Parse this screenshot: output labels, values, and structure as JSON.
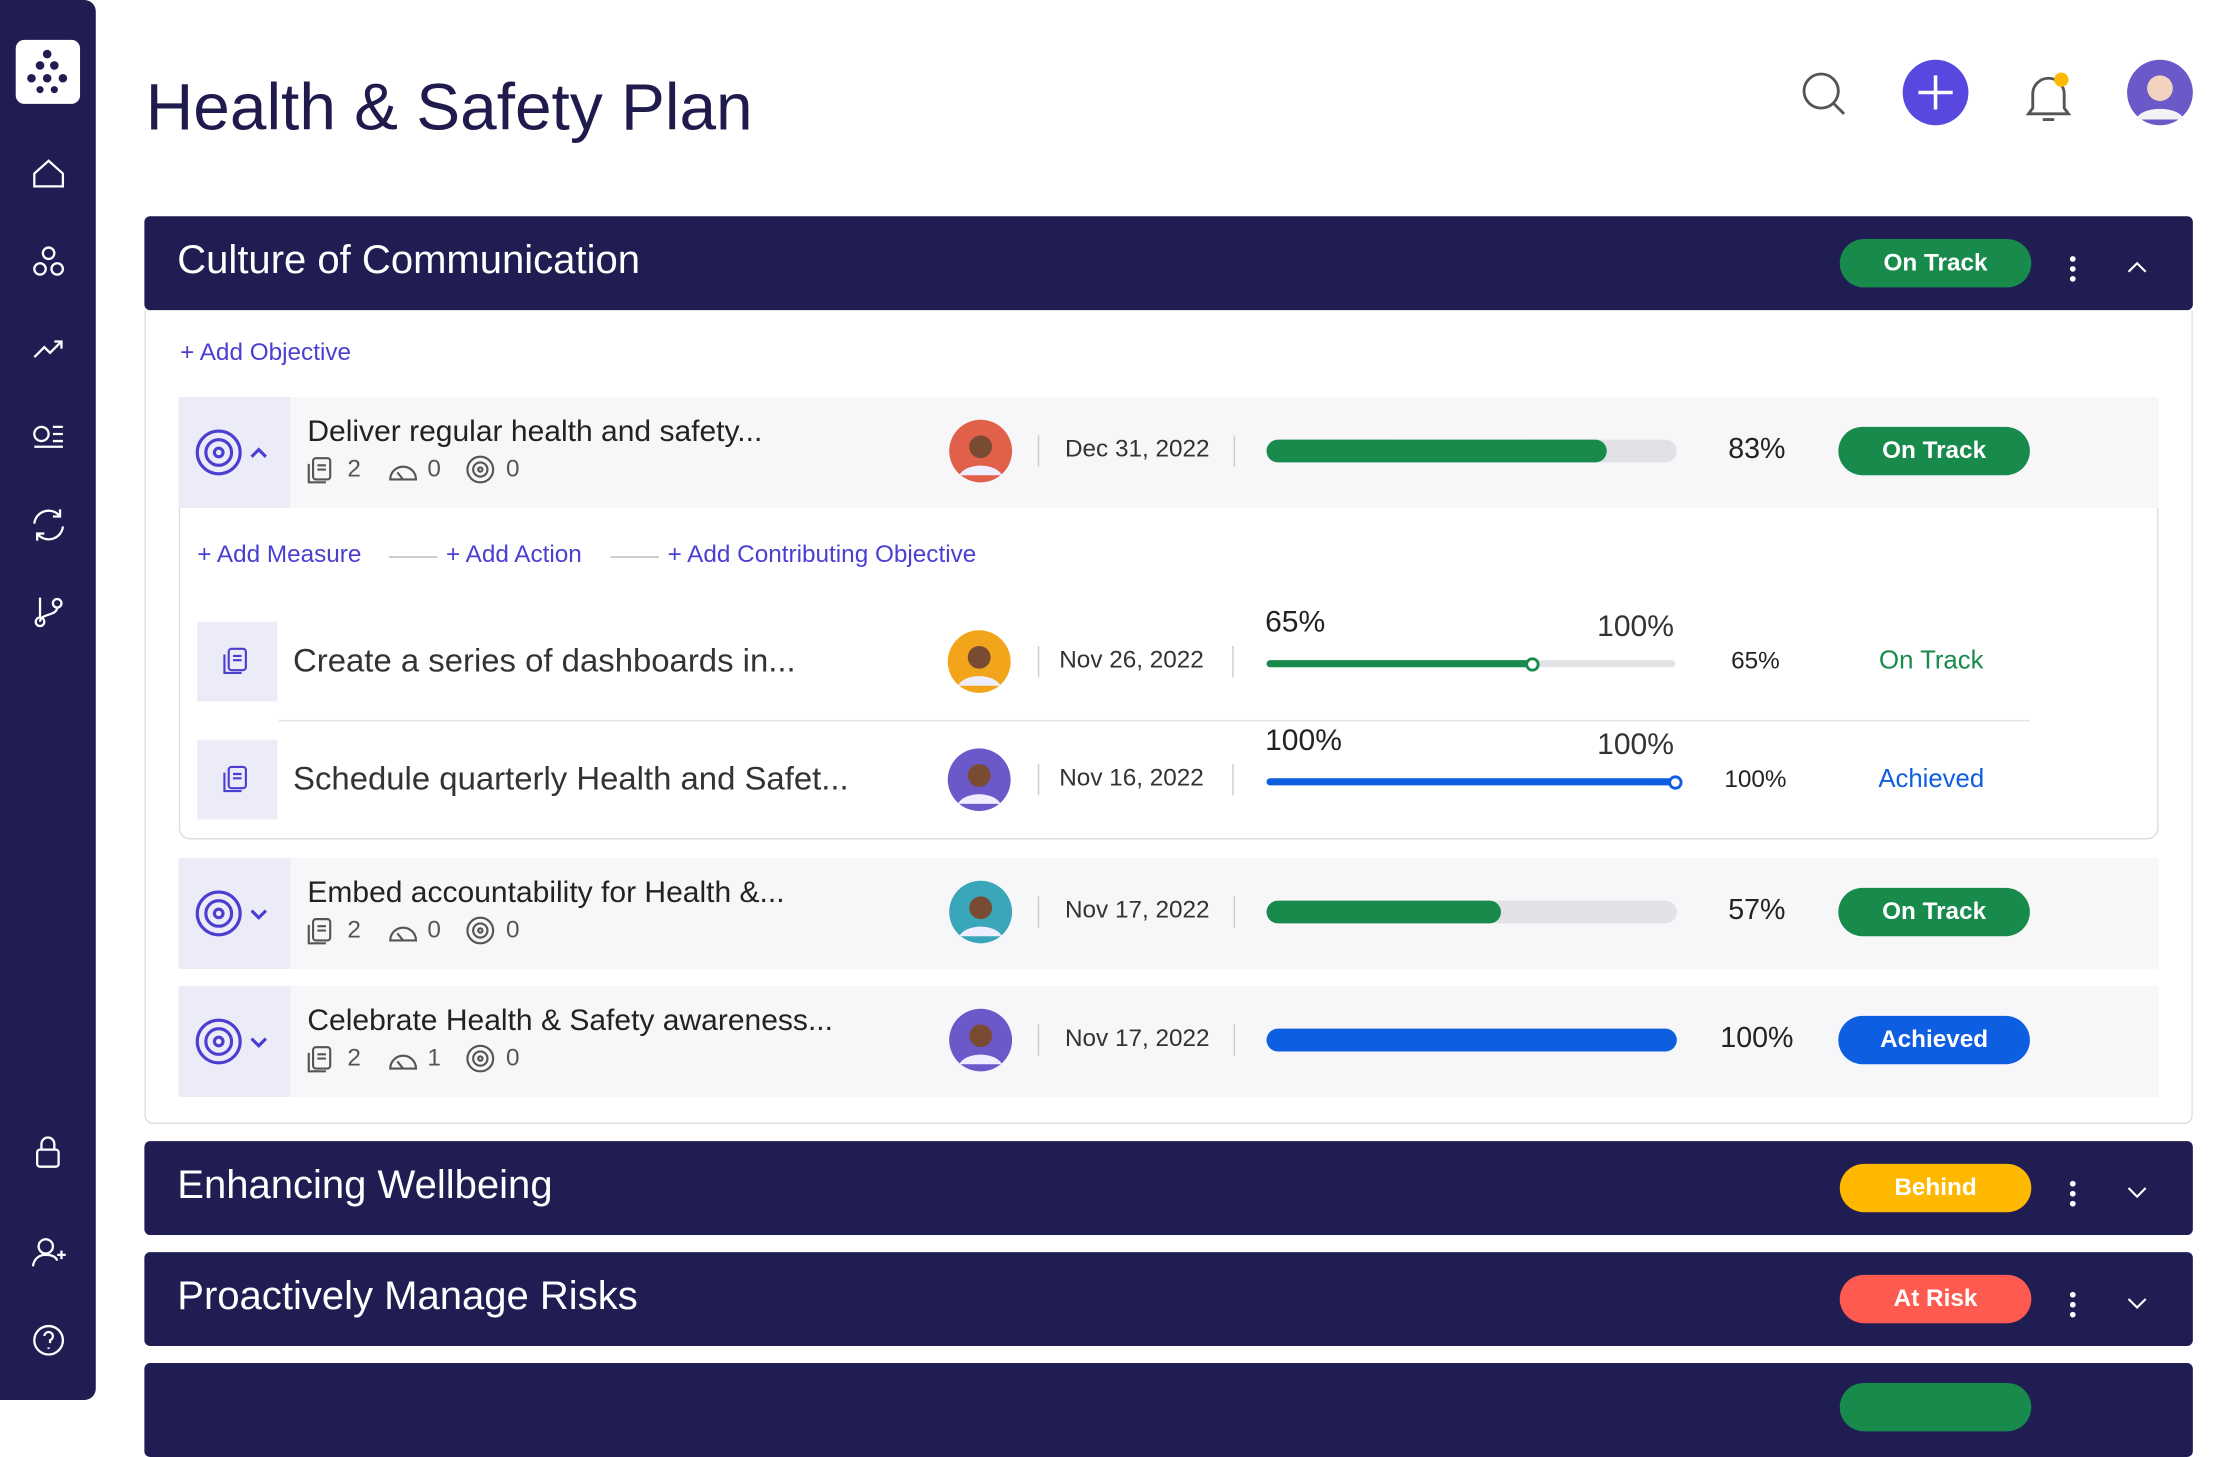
{
  "header": {
    "title": "Health & Safety Plan"
  },
  "sections": [
    {
      "title": "Culture of Communication",
      "status": "On Track",
      "status_color": "#178a4c",
      "expanded": true,
      "add_objective": "+ Add Objective",
      "objectives": [
        {
          "title": "Deliver regular health and safety...",
          "measures": 2,
          "actions": 0,
          "objectives": 0,
          "avatar_color": "#e0604a",
          "date": "Dec 31, 2022",
          "progress": 83,
          "progress_label": "83%",
          "status": "On Track",
          "color": "#178a4c",
          "expanded": true,
          "links": [
            "+ Add Measure",
            "+ Add Action",
            "+ Add Contributing Objective"
          ],
          "measure_rows": [
            {
              "name": "Create a series of dashboards in...",
              "avatar_color": "#f2a51a",
              "date": "Nov 26, 2022",
              "current": 65,
              "current_label": "65%",
              "target": 100,
              "target_label": "100%",
              "status": "On Track",
              "color": "#178a4c"
            },
            {
              "name": "Schedule quarterly Health and Safet...",
              "avatar_color": "#6b58c9",
              "date": "Nov 16, 2022",
              "current": 100,
              "current_label": "100%",
              "target": 100,
              "target_label": "100%",
              "status": "Achieved",
              "color": "#0d5ee0"
            }
          ]
        },
        {
          "title": "Embed accountability for Health &...",
          "measures": 2,
          "actions": 0,
          "objectives": 0,
          "avatar_color": "#3aa6b9",
          "date": "Nov 17, 2022",
          "progress": 57,
          "progress_label": "57%",
          "status": "On Track",
          "color": "#178a4c",
          "expanded": false
        },
        {
          "title": "Celebrate Health & Safety awareness...",
          "measures": 2,
          "actions": 1,
          "objectives": 0,
          "avatar_color": "#6b58c9",
          "date": "Nov 17, 2022",
          "progress": 100,
          "progress_label": "100%",
          "status": "Achieved",
          "color": "#0d5ee0",
          "expanded": false
        }
      ]
    },
    {
      "title": "Enhancing Wellbeing",
      "status": "Behind",
      "status_color": "#ffb800",
      "expanded": false
    },
    {
      "title": "Proactively Manage Risks",
      "status": "At Risk",
      "status_color": "#ff5a4f",
      "expanded": false
    }
  ]
}
